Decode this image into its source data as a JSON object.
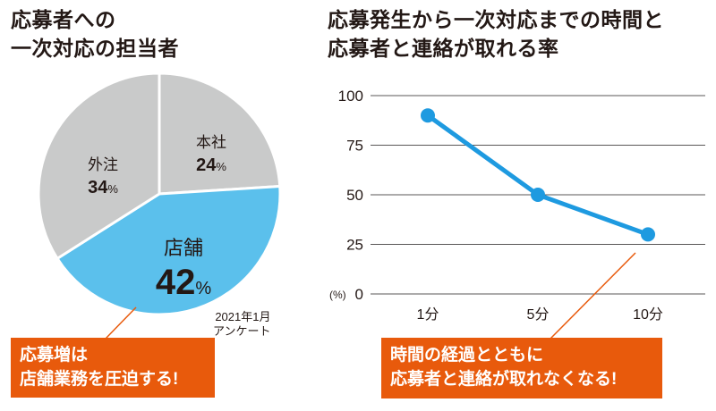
{
  "chart_data": [
    {
      "type": "pie",
      "title": [
        "応募者への",
        "一次対応の担当者"
      ],
      "slices": [
        {
          "label": "本社",
          "value": 24,
          "color": "#c9caca"
        },
        {
          "label": "店舗",
          "value": 42,
          "color": "#5bc0ec"
        },
        {
          "label": "外注",
          "value": 34,
          "color": "#c9caca"
        }
      ],
      "unit": "%",
      "note": [
        "2021年1月",
        "アンケート"
      ],
      "callout": [
        "応募増は",
        "店舗業務を圧迫する!"
      ]
    },
    {
      "type": "line",
      "title": [
        "応募発生から一次対応までの時間と",
        "応募者と連絡が取れる率"
      ],
      "categories": [
        "1分",
        "5分",
        "10分"
      ],
      "values": [
        90,
        50,
        30
      ],
      "ylabel": "(%)",
      "ylim": [
        0,
        100
      ],
      "yticks": [
        "0",
        "25",
        "50",
        "75",
        "100"
      ],
      "grid": true,
      "color": "#1e9ae0",
      "callout": [
        "時間の経過とともに",
        "応募者と連絡が取れなくなる!"
      ]
    }
  ]
}
